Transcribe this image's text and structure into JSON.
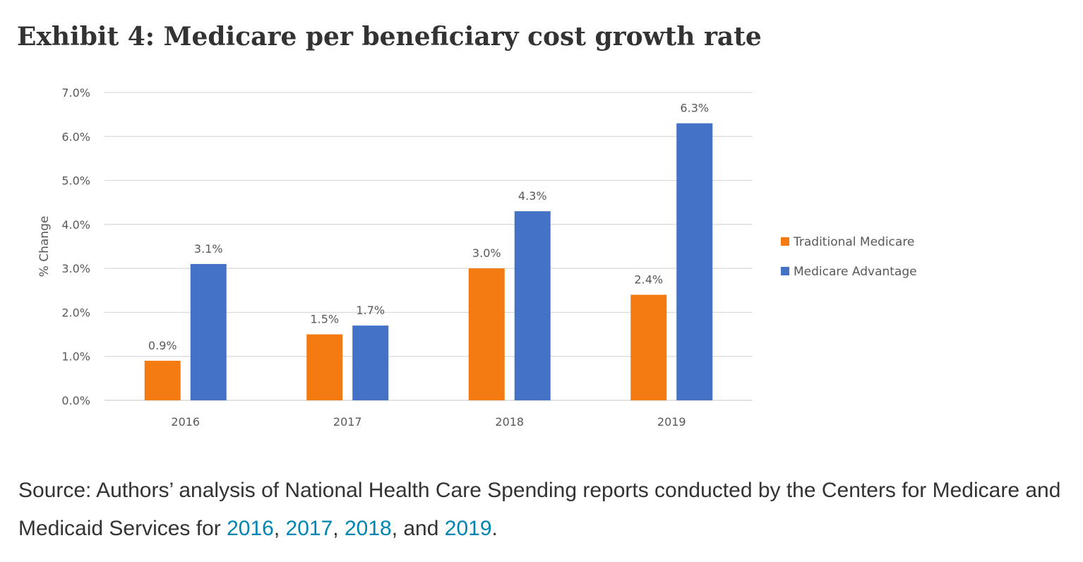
{
  "page": {
    "title": "Exhibit 4: Medicare per beneficiary cost growth rate"
  },
  "source": {
    "prefix": "Source: Authors’ analysis of National Health Care Spending reports conducted by the Centers for Medicare and Medicaid Services for ",
    "links": [
      "2016",
      "2017",
      "2018",
      "2019"
    ],
    "sep1": ", ",
    "sep2": ", ",
    "sep3": ", and ",
    "suffix": "."
  },
  "colors": {
    "traditional": "#f47b12",
    "advantage": "#4472c4",
    "grid": "#d9d9d9",
    "axis_text": "#595959",
    "link": "#0084b4"
  },
  "chart_data": {
    "type": "bar",
    "categories": [
      "2016",
      "2017",
      "2018",
      "2019"
    ],
    "series": [
      {
        "name": "Traditional Medicare",
        "values": [
          0.9,
          1.5,
          3.0,
          2.4
        ],
        "labels": [
          "0.9%",
          "1.5%",
          "3.0%",
          "2.4%"
        ]
      },
      {
        "name": "Medicare Advantage",
        "values": [
          3.1,
          1.7,
          4.3,
          6.3
        ],
        "labels": [
          "3.1%",
          "1.7%",
          "4.3%",
          "6.3%"
        ]
      }
    ],
    "ylabel": "% Change",
    "xlabel": "",
    "ylim": [
      0,
      7
    ],
    "yticks": [
      0,
      1,
      2,
      3,
      4,
      5,
      6,
      7
    ],
    "ytick_labels": [
      "0.0%",
      "1.0%",
      "2.0%",
      "3.0%",
      "4.0%",
      "5.0%",
      "6.0%",
      "7.0%"
    ],
    "grid": true,
    "legend_position": "right"
  }
}
